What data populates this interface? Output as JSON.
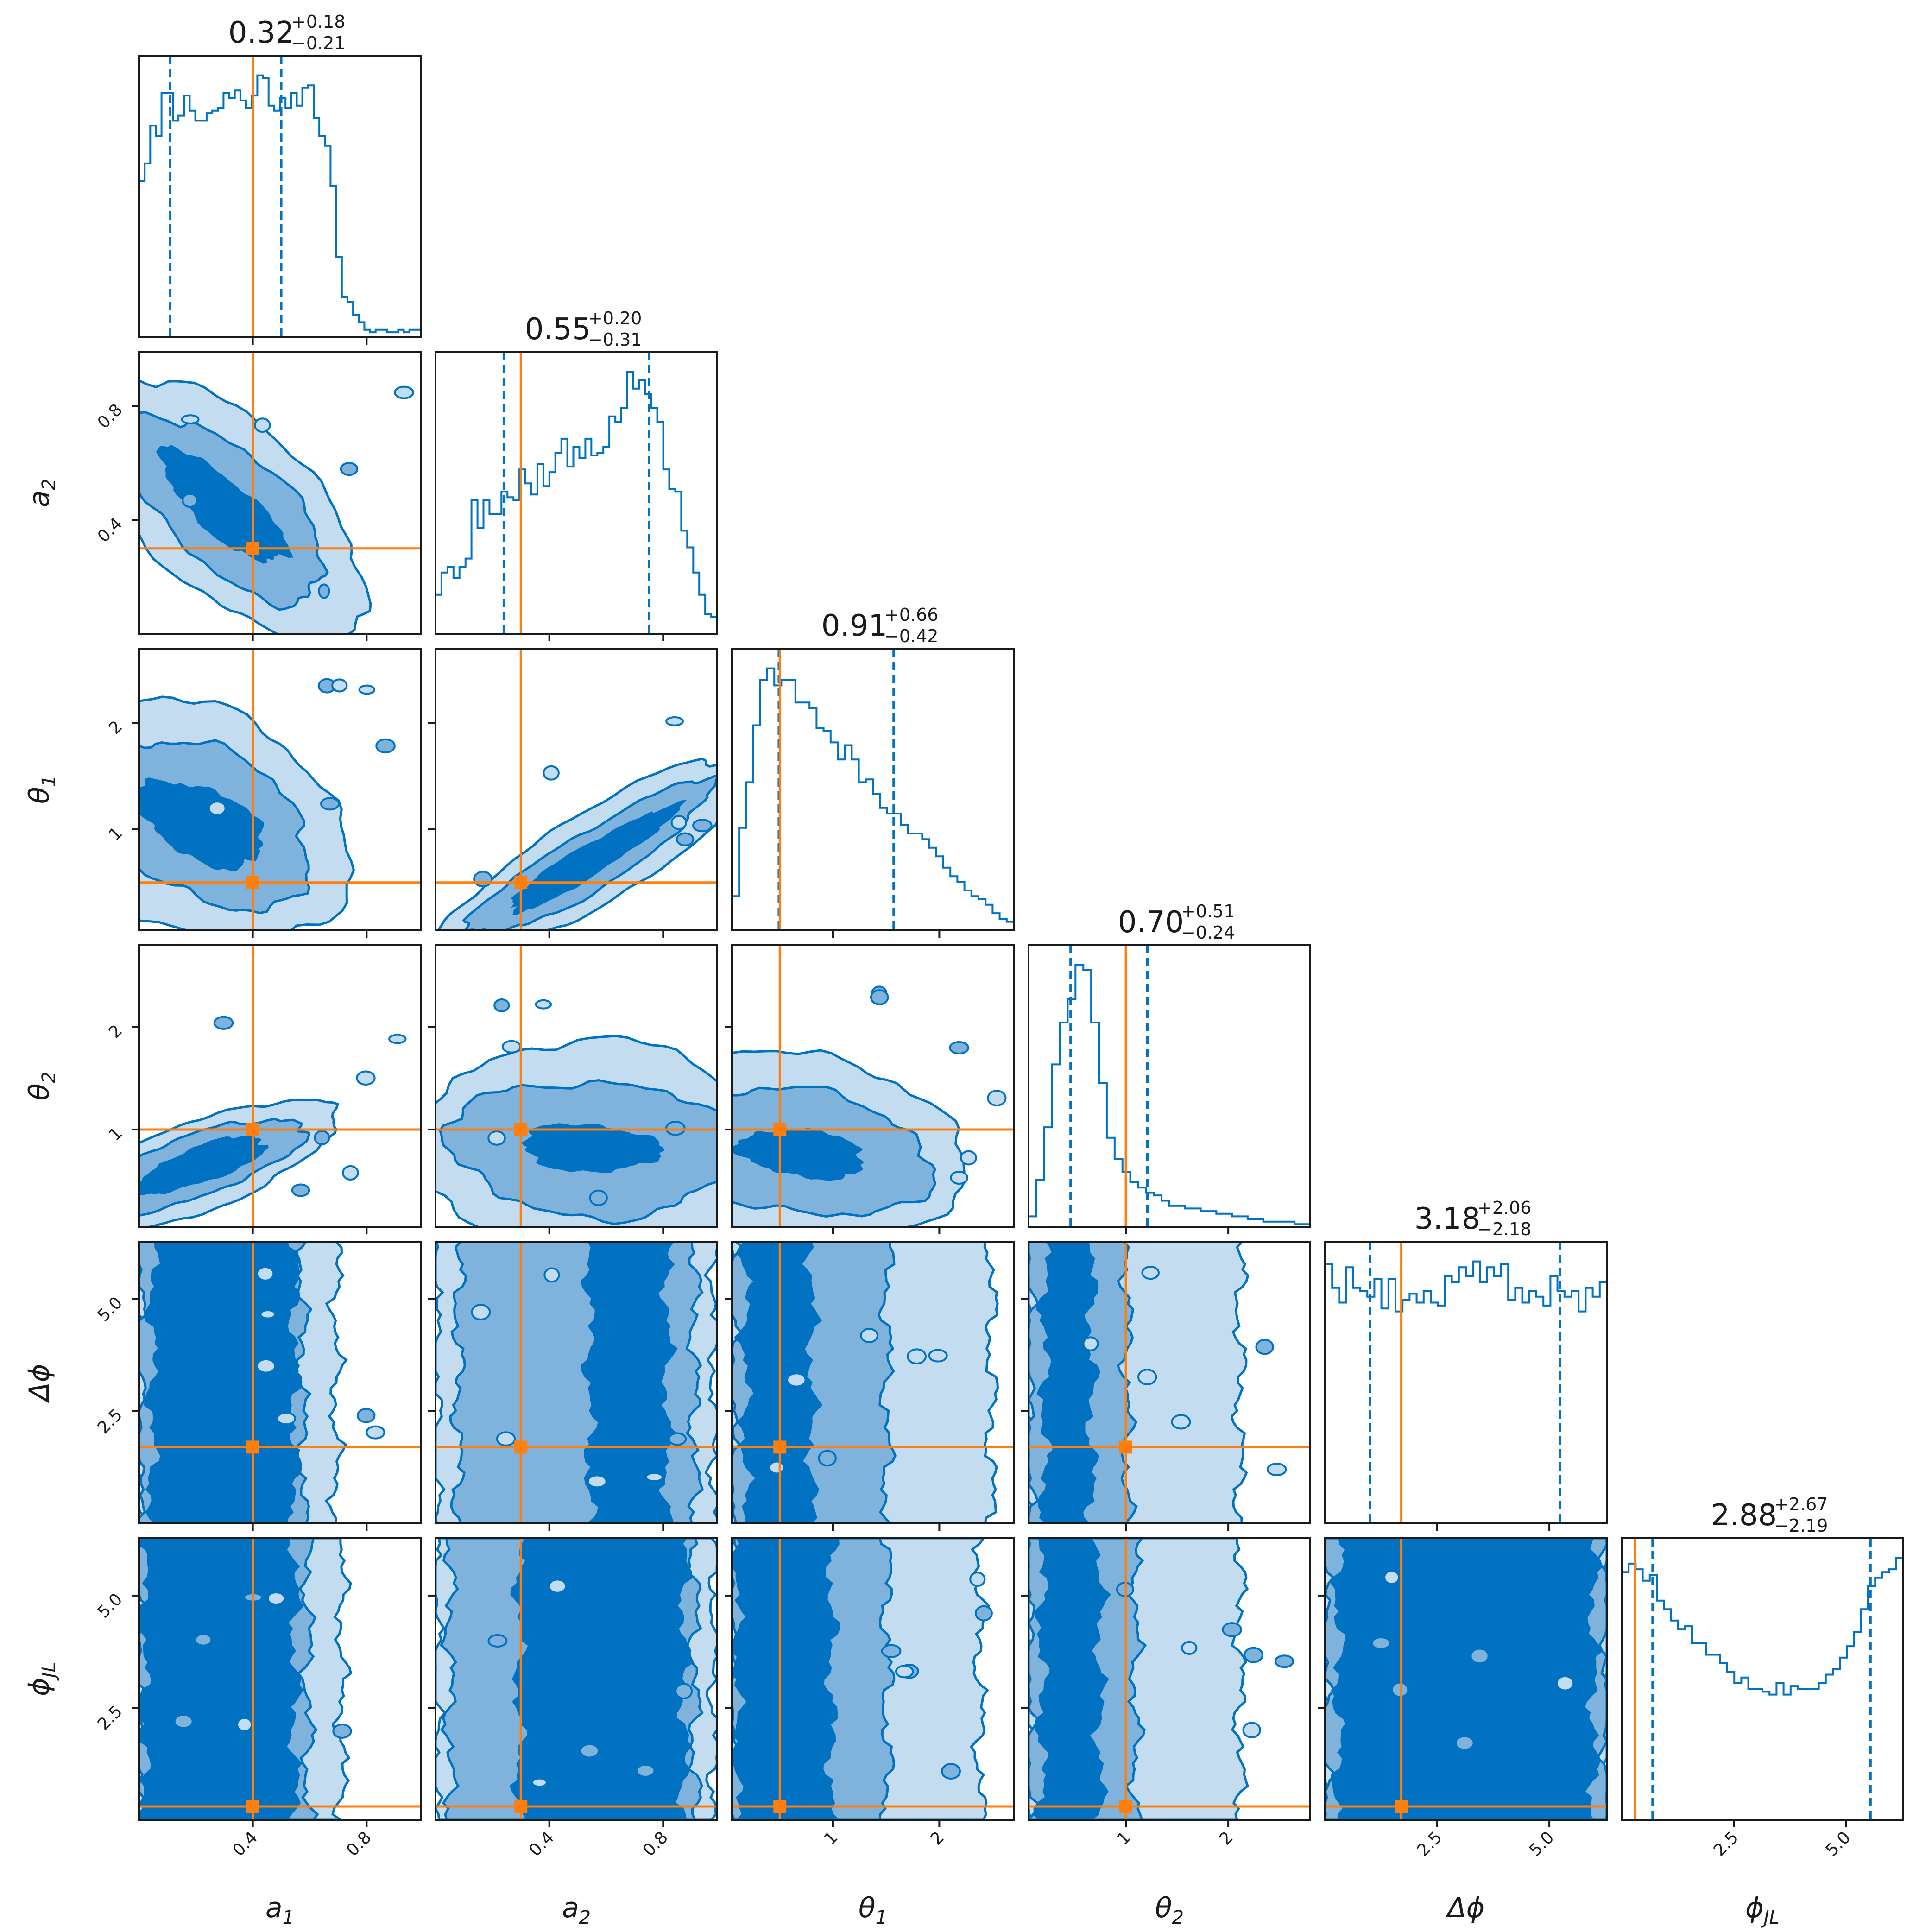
{
  "colors": {
    "hist": "#0072c1",
    "truth": "#ff7f0e",
    "contour_levels": [
      "#c3dcef",
      "#7fb3dc",
      "#0072c1"
    ],
    "contour_line": "#0072c1",
    "frame": "#1a1a1a"
  },
  "chart_data": {
    "type": "corner",
    "grid": false,
    "parameters": [
      {
        "key": "a1",
        "label_base": "a",
        "label_sub": "1",
        "range": [
          0.0,
          0.99
        ],
        "ticks": [
          0.4,
          0.8
        ],
        "tick_labels": [
          "0.4",
          "0.8"
        ],
        "truth": 0.4,
        "median": 0.32,
        "plus": "+0.18",
        "minus": "−0.21",
        "title_value": "0.32",
        "title_plus": "+0.18",
        "title_minus": "−0.21",
        "quantiles": [
          0.11,
          0.5
        ]
      },
      {
        "key": "a2",
        "label_base": "a",
        "label_sub": "2",
        "range": [
          0.0,
          0.99
        ],
        "ticks": [
          0.4,
          0.8
        ],
        "tick_labels": [
          "0.4",
          "0.8"
        ],
        "truth": 0.3,
        "median": 0.55,
        "plus": "+0.20",
        "minus": "−0.31",
        "title_value": "0.55",
        "title_plus": "+0.20",
        "title_minus": "−0.31",
        "quantiles": [
          0.24,
          0.75
        ]
      },
      {
        "key": "theta1",
        "label_base": "θ",
        "label_sub": "1",
        "range": [
          0.05,
          2.7
        ],
        "ticks": [
          1,
          2
        ],
        "tick_labels": [
          "1",
          "2"
        ],
        "truth": 0.5,
        "median": 0.91,
        "plus": "+0.66",
        "minus": "−0.42",
        "title_value": "0.91",
        "title_plus": "+0.66",
        "title_minus": "−0.42",
        "quantiles": [
          0.49,
          1.57
        ]
      },
      {
        "key": "theta2",
        "label_base": "θ",
        "label_sub": "2",
        "range": [
          0.05,
          2.8
        ],
        "ticks": [
          1,
          2
        ],
        "tick_labels": [
          "1",
          "2"
        ],
        "truth": 1.0,
        "median": 0.7,
        "plus": "+0.51",
        "minus": "−0.24",
        "title_value": "0.70",
        "title_plus": "+0.51",
        "title_minus": "−0.24",
        "quantiles": [
          0.46,
          1.21
        ]
      },
      {
        "key": "dphi",
        "label_base": "Δϕ",
        "label_sub": "",
        "range": [
          0.0,
          6.28
        ],
        "ticks": [
          2.5,
          5.0
        ],
        "tick_labels": [
          "2.5",
          "5.0"
        ],
        "truth": 1.7,
        "median": 3.18,
        "plus": "+2.06",
        "minus": "−2.18",
        "title_value": "3.18",
        "title_plus": "+2.06",
        "title_minus": "−2.18",
        "quantiles": [
          1.0,
          5.24
        ]
      },
      {
        "key": "phijl",
        "label_base": "ϕ",
        "label_sub": "JL",
        "range": [
          0.0,
          6.28
        ],
        "ticks": [
          2.5,
          5.0
        ],
        "tick_labels": [
          "2.5",
          "5.0"
        ],
        "truth": 0.3,
        "median": 2.88,
        "plus": "+2.67",
        "minus": "−2.19",
        "title_value": "2.88",
        "title_plus": "+2.67",
        "title_minus": "−2.19",
        "quantiles": [
          0.69,
          5.55
        ]
      }
    ],
    "histograms": {
      "a1": [
        0.62,
        0.69,
        0.84,
        0.8,
        0.97,
        0.97,
        0.86,
        0.88,
        0.96,
        0.9,
        0.86,
        0.86,
        0.89,
        0.9,
        0.91,
        0.97,
        0.95,
        0.98,
        0.94,
        0.91,
        0.96,
        1.04,
        1.03,
        0.92,
        0.9,
        0.95,
        0.91,
        0.97,
        0.92,
        0.99,
        1.0,
        0.87,
        0.8,
        0.76,
        0.6,
        0.32,
        0.16,
        0.14,
        0.09,
        0.06,
        0.03,
        0.02,
        0.03,
        0.03,
        0.02,
        0.02,
        0.03,
        0.02,
        0.03,
        0.03
      ],
      "a2": [
        0.14,
        0.22,
        0.24,
        0.2,
        0.24,
        0.27,
        0.48,
        0.38,
        0.48,
        0.43,
        0.43,
        0.51,
        0.49,
        0.48,
        0.59,
        0.54,
        0.5,
        0.61,
        0.53,
        0.58,
        0.65,
        0.7,
        0.6,
        0.67,
        0.63,
        0.7,
        0.64,
        0.65,
        0.67,
        0.78,
        0.76,
        0.81,
        0.94,
        0.88,
        0.91,
        0.86,
        0.81,
        0.76,
        0.59,
        0.52,
        0.51,
        0.37,
        0.31,
        0.22,
        0.14,
        0.07,
        0.06
      ],
      "theta1": [
        0.12,
        0.36,
        0.52,
        0.72,
        0.88,
        0.92,
        0.86,
        0.88,
        0.88,
        0.8,
        0.8,
        0.78,
        0.71,
        0.7,
        0.66,
        0.6,
        0.65,
        0.6,
        0.52,
        0.53,
        0.48,
        0.43,
        0.41,
        0.41,
        0.37,
        0.34,
        0.34,
        0.32,
        0.29,
        0.26,
        0.22,
        0.19,
        0.17,
        0.14,
        0.12,
        0.11,
        0.09,
        0.06,
        0.04,
        0.03
      ],
      "theta2": [
        0.04,
        0.18,
        0.38,
        0.62,
        0.78,
        0.87,
        1.0,
        0.98,
        0.78,
        0.55,
        0.34,
        0.26,
        0.21,
        0.17,
        0.15,
        0.13,
        0.12,
        0.1,
        0.08,
        0.08,
        0.07,
        0.07,
        0.06,
        0.06,
        0.05,
        0.05,
        0.04,
        0.04,
        0.03,
        0.03,
        0.02,
        0.02,
        0.02,
        0.02,
        0.01,
        0.01
      ],
      "dphi": [
        0.88,
        0.8,
        0.75,
        0.87,
        0.8,
        0.79,
        0.77,
        0.83,
        0.73,
        0.83,
        0.72,
        0.76,
        0.78,
        0.75,
        0.79,
        0.75,
        0.74,
        0.84,
        0.82,
        0.87,
        0.84,
        0.89,
        0.82,
        0.87,
        0.84,
        0.88,
        0.76,
        0.8,
        0.75,
        0.79,
        0.77,
        0.74,
        0.84,
        0.79,
        0.77,
        0.79,
        0.72,
        0.8,
        0.77,
        0.82
      ],
      "phijl": [
        0.87,
        0.9,
        0.88,
        0.84,
        0.86,
        0.77,
        0.74,
        0.7,
        0.67,
        0.68,
        0.62,
        0.62,
        0.58,
        0.58,
        0.55,
        0.52,
        0.48,
        0.5,
        0.46,
        0.46,
        0.45,
        0.44,
        0.48,
        0.44,
        0.47,
        0.46,
        0.46,
        0.46,
        0.48,
        0.51,
        0.53,
        0.57,
        0.61,
        0.66,
        0.74,
        0.82,
        0.85,
        0.87,
        0.88,
        0.92
      ]
    }
  }
}
